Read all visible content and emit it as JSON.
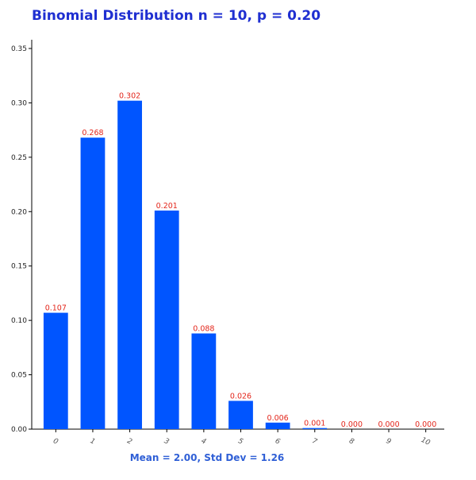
{
  "chart_data": {
    "type": "bar",
    "title": "Binomial Distribution n = 10, p = 0.20",
    "subtitle": "Mean = 2.00, Std Dev = 1.26",
    "xlabel": "",
    "ylabel": "",
    "categories": [
      "0",
      "1",
      "2",
      "3",
      "4",
      "5",
      "6",
      "7",
      "8",
      "9",
      "10"
    ],
    "values": [
      0.107,
      0.268,
      0.302,
      0.201,
      0.088,
      0.026,
      0.006,
      0.001,
      0.0,
      0.0,
      0.0
    ],
    "data_labels": [
      "0.107",
      "0.268",
      "0.302",
      "0.201",
      "0.088",
      "0.026",
      "0.006",
      "0.001",
      "0.000",
      "0.000",
      "0.000"
    ],
    "y_ticks": [
      0.0,
      0.05,
      0.1,
      0.15,
      0.2,
      0.25,
      0.3,
      0.35
    ],
    "y_tick_labels": [
      "0.00",
      "0.05",
      "0.10",
      "0.15",
      "0.20",
      "0.25",
      "0.30",
      "0.35"
    ],
    "ylim": [
      0,
      0.35
    ],
    "grid": false,
    "legend": "none",
    "colors": {
      "bar": "#0055ff",
      "data_label": "#e3261b",
      "title": "#1f2fd1",
      "subtitle": "#2f5fd6"
    }
  }
}
